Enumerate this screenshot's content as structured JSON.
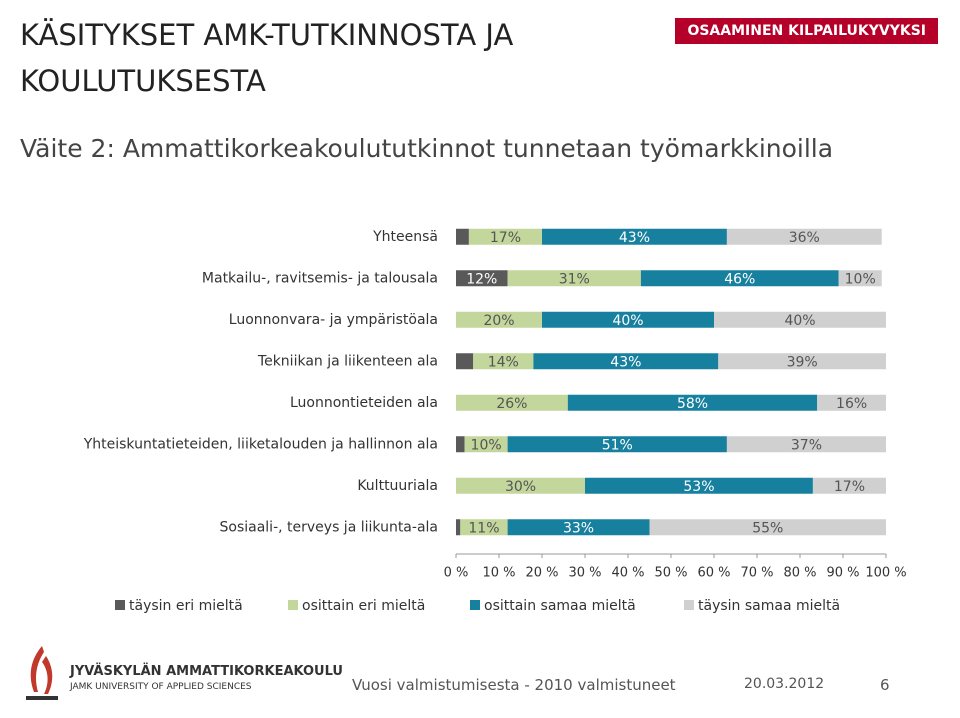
{
  "header": {
    "title": "KÄSITYKSET AMK-TUTKINNOSTA JA KOULUTUKSESTA",
    "badge": "OSAAMINEN KILPAILUKYVYKSI",
    "subtitle": "Väite 2: Ammattikorkeakoulututkinnot tunnetaan työmarkkinoilla"
  },
  "chart_data": {
    "type": "stacked-bar-horizontal",
    "categories": [
      "Yhteensä",
      "Matkailu-, ravitsemis- ja talousala",
      "Luonnonvara- ja ympäristöala",
      "Tekniikan ja liikenteen ala",
      "Luonnontieteiden ala",
      "Yhteiskuntatieteiden, liiketalouden ja hallinnon ala",
      "Kulttuuriala",
      "Sosiaali-, terveys ja liikunta-ala"
    ],
    "series": [
      {
        "name": "täysin eri mieltä",
        "color": "#595959",
        "values": [
          3,
          12,
          0,
          4,
          0,
          2,
          0,
          1
        ],
        "value_labels": [
          null,
          "12%",
          null,
          null,
          null,
          null,
          null,
          null
        ]
      },
      {
        "name": "osittain eri mieltä",
        "color": "#c3d69b",
        "values": [
          17,
          31,
          20,
          14,
          26,
          10,
          30,
          11
        ],
        "value_labels": [
          "17%",
          "31%",
          "20%",
          "14%",
          "26%",
          "10%",
          "30%",
          "11%"
        ]
      },
      {
        "name": "osittain samaa mieltä",
        "color": "#17809e",
        "values": [
          43,
          46,
          40,
          43,
          58,
          51,
          53,
          33
        ],
        "value_labels": [
          "43%",
          "46%",
          "40%",
          "43%",
          "58%",
          "51%",
          "53%",
          "33%"
        ]
      },
      {
        "name": "täysin samaa mieltä",
        "color": "#d0d0d0",
        "values": [
          36,
          10,
          40,
          39,
          16,
          37,
          17,
          55
        ],
        "value_labels": [
          "36%",
          "10%",
          "40%",
          "39%",
          "16%",
          "37%",
          "17%",
          "55%"
        ]
      }
    ],
    "xlim": [
      0,
      100
    ],
    "xticks": [
      {
        "value": 0,
        "label": "0 %"
      },
      {
        "value": 10,
        "label": "10 %"
      },
      {
        "value": 20,
        "label": "20 %"
      },
      {
        "value": 30,
        "label": "30 %"
      },
      {
        "value": 40,
        "label": "40 %"
      },
      {
        "value": 50,
        "label": "50 %"
      },
      {
        "value": 60,
        "label": "60 %"
      },
      {
        "value": 70,
        "label": "70 %"
      },
      {
        "value": 80,
        "label": "80 %"
      },
      {
        "value": 90,
        "label": "90 %"
      },
      {
        "value": 100,
        "label": "100 %"
      }
    ],
    "legend": "bottom"
  },
  "footer": {
    "logo_name": "JYVÄSKYLÄN AMMATTIKORKEAKOULU",
    "logo_sub": "JAMK UNIVERSITY OF APPLIED SCIENCES",
    "note": "Vuosi valmistumisesta - 2010 valmistuneet",
    "date": "20.03.2012",
    "page": "6"
  }
}
